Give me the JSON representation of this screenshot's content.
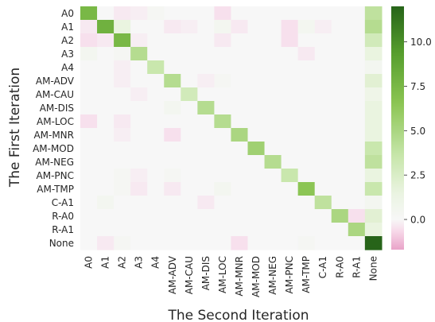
{
  "chart_data": {
    "type": "heatmap",
    "xlabel": "The Second Iteration",
    "ylabel": "The First Iteration",
    "x_categories": [
      "A0",
      "A1",
      "A2",
      "A3",
      "A4",
      "AM-ADV",
      "AM-CAU",
      "AM-DIS",
      "AM-LOC",
      "AM-MNR",
      "AM-MOD",
      "AM-NEG",
      "AM-PNC",
      "AM-TMP",
      "C-A1",
      "R-A0",
      "R-A1",
      "None"
    ],
    "y_categories": [
      "A0",
      "A1",
      "A2",
      "A3",
      "A4",
      "AM-ADV",
      "AM-CAU",
      "AM-DIS",
      "AM-LOC",
      "AM-MNR",
      "AM-MOD",
      "AM-NEG",
      "AM-PNC",
      "AM-TMP",
      "C-A1",
      "R-A0",
      "R-A1",
      "None"
    ],
    "colorbar": {
      "vmin": -1.7,
      "vmax": 12,
      "ticks": [
        0.0,
        2.5,
        5.0,
        7.5,
        10.0
      ],
      "tick_labels": [
        "0.0",
        "2.5",
        "5.0",
        "7.5",
        "10.0"
      ]
    },
    "values": [
      [
        7.5,
        0.0,
        -0.3,
        -0.2,
        0.3,
        0.0,
        0.0,
        0.0,
        -0.5,
        0.0,
        0.0,
        0.0,
        0.0,
        0.0,
        0.0,
        0.0,
        0.0,
        4.0
      ],
      [
        -0.3,
        8.0,
        1.5,
        0.0,
        0.0,
        -0.3,
        -0.2,
        0.0,
        0.5,
        -0.3,
        0.0,
        0.0,
        -0.5,
        0.5,
        -0.2,
        0.0,
        0.0,
        4.5
      ],
      [
        -0.5,
        -0.3,
        7.5,
        -0.2,
        0.0,
        0.0,
        0.0,
        0.0,
        -0.3,
        0.0,
        0.0,
        0.0,
        -0.5,
        0.0,
        0.0,
        0.0,
        0.0,
        3.0
      ],
      [
        0.5,
        0.0,
        0.3,
        4.5,
        0.0,
        0.0,
        0.0,
        0.0,
        0.0,
        0.0,
        0.0,
        0.0,
        0.0,
        -0.3,
        0.0,
        0.0,
        0.0,
        1.5
      ],
      [
        0.0,
        0.0,
        -0.2,
        0.0,
        3.5,
        0.0,
        0.0,
        0.0,
        0.0,
        0.0,
        0.0,
        0.0,
        0.0,
        0.0,
        0.0,
        0.0,
        0.0,
        0.5
      ],
      [
        0.0,
        0.0,
        -0.2,
        0.0,
        0.0,
        4.5,
        0.0,
        -0.2,
        0.3,
        0.0,
        0.0,
        0.0,
        0.0,
        0.0,
        0.0,
        0.0,
        0.0,
        2.0
      ],
      [
        0.0,
        0.0,
        0.0,
        -0.2,
        0.0,
        0.0,
        3.0,
        0.0,
        0.0,
        0.0,
        0.0,
        0.0,
        0.0,
        0.0,
        0.0,
        0.0,
        0.0,
        1.0
      ],
      [
        0.0,
        0.0,
        0.0,
        0.0,
        0.0,
        0.5,
        0.0,
        4.5,
        0.0,
        0.0,
        0.0,
        0.0,
        0.0,
        0.0,
        0.0,
        0.0,
        0.0,
        1.5
      ],
      [
        -0.5,
        0.0,
        -0.3,
        0.0,
        0.0,
        0.0,
        0.0,
        0.0,
        4.5,
        0.0,
        0.0,
        0.0,
        0.0,
        0.0,
        0.0,
        0.0,
        0.0,
        1.5
      ],
      [
        0.0,
        0.0,
        -0.2,
        0.0,
        0.0,
        -0.5,
        0.0,
        0.0,
        0.0,
        5.0,
        0.0,
        0.0,
        0.0,
        0.0,
        0.0,
        0.0,
        0.0,
        1.5
      ],
      [
        0.0,
        0.0,
        0.0,
        0.0,
        0.0,
        0.0,
        0.0,
        0.0,
        0.0,
        0.0,
        5.5,
        0.0,
        0.0,
        0.0,
        0.0,
        0.0,
        0.0,
        3.5
      ],
      [
        0.0,
        0.0,
        0.0,
        0.0,
        0.0,
        0.0,
        0.0,
        0.0,
        0.0,
        0.0,
        0.0,
        4.5,
        0.0,
        0.0,
        0.0,
        0.0,
        0.0,
        4.0
      ],
      [
        0.0,
        0.0,
        0.3,
        -0.2,
        0.0,
        0.3,
        0.0,
        0.0,
        0.0,
        0.0,
        0.0,
        0.0,
        3.5,
        0.0,
        0.0,
        0.0,
        0.0,
        1.5
      ],
      [
        0.0,
        0.0,
        0.3,
        -0.3,
        0.0,
        -0.3,
        0.0,
        0.0,
        0.5,
        0.0,
        0.0,
        0.0,
        0.0,
        6.5,
        0.0,
        0.0,
        0.0,
        3.5
      ],
      [
        0.0,
        0.5,
        0.0,
        0.0,
        0.0,
        0.0,
        0.0,
        -0.3,
        0.0,
        0.0,
        0.0,
        0.0,
        0.0,
        0.0,
        4.0,
        0.0,
        0.0,
        0.5
      ],
      [
        0.0,
        0.0,
        0.0,
        0.0,
        0.0,
        0.0,
        0.0,
        0.0,
        0.0,
        0.0,
        0.0,
        0.0,
        0.0,
        0.0,
        0.0,
        5.0,
        -0.5,
        2.0
      ],
      [
        0.0,
        0.0,
        0.0,
        0.0,
        0.0,
        0.0,
        0.0,
        0.0,
        0.0,
        0.0,
        0.0,
        0.0,
        0.0,
        0.0,
        0.0,
        0.0,
        5.0,
        1.5
      ],
      [
        0.0,
        -0.3,
        0.3,
        0.0,
        0.0,
        0.0,
        0.0,
        0.0,
        0.0,
        -0.5,
        0.0,
        0.0,
        0.0,
        0.3,
        0.0,
        0.0,
        0.0,
        12.0
      ]
    ]
  }
}
